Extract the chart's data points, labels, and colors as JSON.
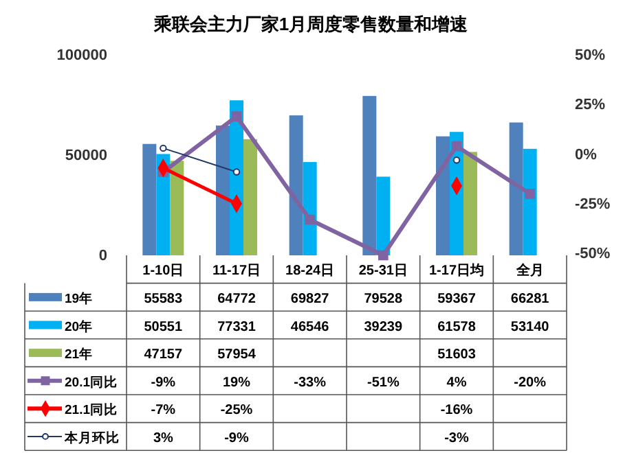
{
  "chart_data": {
    "type": "bar",
    "title": "乘联会主力厂家1月周度零售数量和增速",
    "categories": [
      "1-10日",
      "11-17日",
      "18-24日",
      "25-31日",
      "1-17日均",
      "全月"
    ],
    "ylim": [
      0,
      100000
    ],
    "yticks": [
      0,
      50000,
      100000
    ],
    "y2lim": [
      -51,
      50
    ],
    "y2ticks": [
      {
        "value": -50,
        "label": "-50%"
      },
      {
        "value": -25,
        "label": "-25%"
      },
      {
        "value": 0,
        "label": "0%"
      },
      {
        "value": 25,
        "label": "25%"
      },
      {
        "value": 50,
        "label": "50%"
      }
    ],
    "legend": "bottom",
    "grid": false,
    "data_labels": true,
    "series": [
      {
        "name": "19年",
        "color": "#4f81bd",
        "values": [
          55583,
          64772,
          69827,
          79528,
          59367,
          66281
        ]
      },
      {
        "name": "20年",
        "color": "#00b0f0",
        "values": [
          50551,
          77331,
          46546,
          39239,
          61578,
          53140
        ]
      },
      {
        "name": "21年",
        "color": "#9bbb59",
        "values": [
          47157,
          57954,
          null,
          null,
          51603,
          null
        ]
      },
      {
        "name": "20.1同比",
        "type": "line",
        "axis": "y2",
        "color": "#8064a2",
        "marker": "square",
        "values": [
          -9,
          19,
          -33,
          -51,
          4,
          -20
        ],
        "value_labels": [
          "-9%",
          "19%",
          "-33%",
          "-51%",
          "4%",
          "-20%"
        ]
      },
      {
        "name": "21.1同比",
        "type": "line",
        "axis": "y2",
        "color": "#ff0000",
        "marker": "diamond",
        "values": [
          -7,
          -25,
          null,
          null,
          -16,
          null
        ],
        "value_labels": [
          "-7%",
          "-25%",
          null,
          null,
          "-16%",
          null
        ]
      },
      {
        "name": "本月环比",
        "type": "line",
        "axis": "y2",
        "color": "#1f3864",
        "marker": "circle",
        "values": [
          3,
          -9,
          null,
          null,
          -3,
          null
        ],
        "value_labels": [
          "3%",
          "-9%",
          null,
          null,
          "-3%",
          null
        ]
      }
    ]
  }
}
